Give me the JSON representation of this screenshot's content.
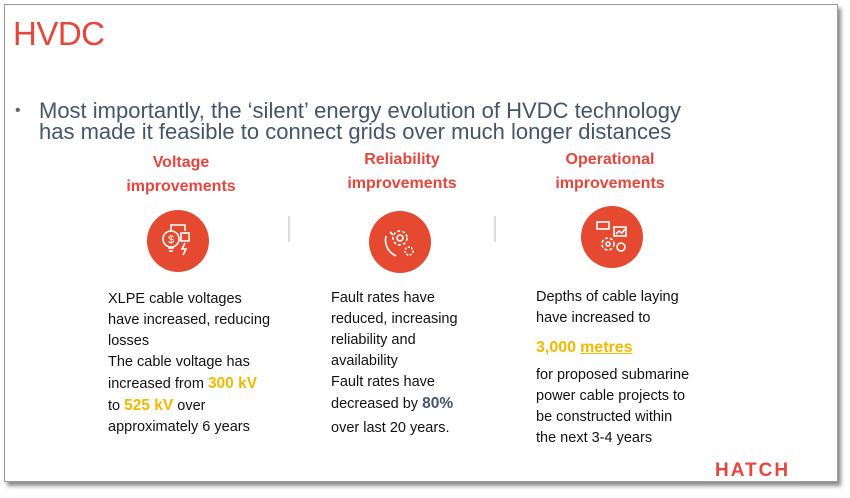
{
  "title": "HVDC",
  "bullet": {
    "line1": "Most importantly, the ‘silent’ energy evolution of HVDC technology",
    "line2": "has made it feasible to connect grids over much longer distances"
  },
  "columns": [
    {
      "heading1": "Voltage",
      "heading2": "improvements",
      "icon": "lightbulb-plug-icon",
      "lines": [
        "XLPE cable voltages",
        "have increased, reducing",
        "losses",
        "The cable voltage has"
      ],
      "l5a": "increased from ",
      "l5b": "300 kV",
      "l6a": "525 kV",
      "l6b": " over",
      "l7": "approximately 6 years",
      "l6pre": "to "
    },
    {
      "heading1": "Reliability",
      "heading2": "improvements",
      "icon": "gear-hand-icon",
      "lines": [
        "Fault rates have",
        "reduced,  increasing",
        "reliability and",
        "availability",
        "Fault rates have"
      ],
      "l6a": "decreased by ",
      "l6b": "80%",
      "l7": "over last 20 years."
    },
    {
      "heading1": "Operational",
      "heading2": "improvements",
      "icon": "gear-dashboard-icon",
      "lines": [
        "Depths of cable laying",
        "have increased to"
      ],
      "hl_num": "3,000",
      "hl_unit": "metres",
      "after": [
        "for proposed submarine",
        "power cable projects to",
        "be constructed within",
        "the next 3-4 years"
      ]
    }
  ],
  "logo": "HATCH"
}
